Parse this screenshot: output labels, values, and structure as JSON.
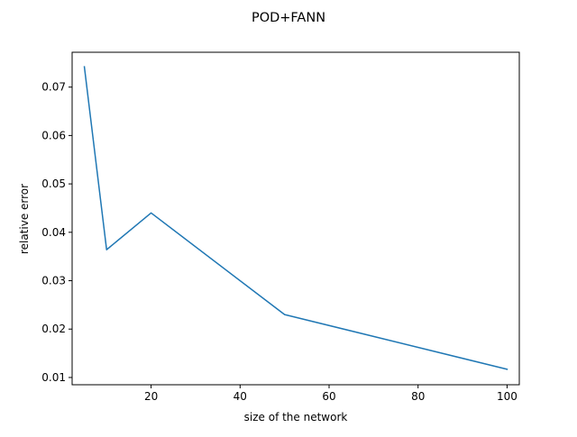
{
  "chart_data": {
    "type": "line",
    "title": "POD+FANN",
    "xlabel": "size of the network",
    "ylabel": "relative error",
    "xlim": [
      2.25,
      102.75
    ],
    "ylim": [
      0.0085,
      0.0772
    ],
    "xticks": [
      20,
      40,
      60,
      80,
      100
    ],
    "xtick_labels": [
      "20",
      "40",
      "60",
      "80",
      "100"
    ],
    "yticks": [
      0.01,
      0.02,
      0.03,
      0.04,
      0.05,
      0.06,
      0.07
    ],
    "ytick_labels": [
      "0.01",
      "0.02",
      "0.03",
      "0.04",
      "0.05",
      "0.06",
      "0.07"
    ],
    "grid": false,
    "series": [
      {
        "color": "#1f77b4",
        "x": [
          5,
          10,
          20,
          50,
          100
        ],
        "y": [
          0.0742,
          0.0364,
          0.044,
          0.023,
          0.0117
        ]
      }
    ]
  }
}
